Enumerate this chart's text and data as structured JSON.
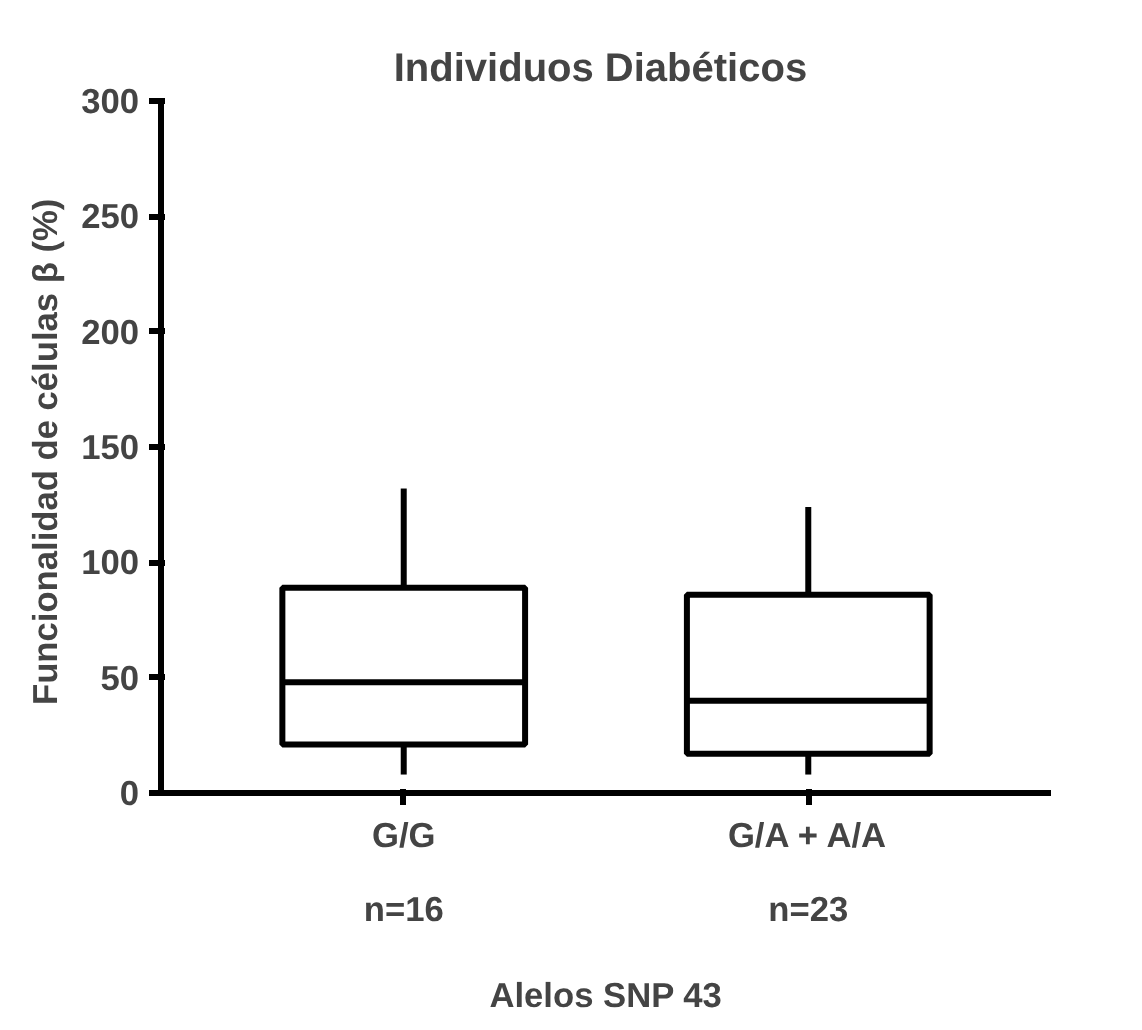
{
  "chart_data": {
    "type": "box",
    "title": "Individuos  Diabéticos",
    "xlabel": "Alelos SNP 43",
    "ylabel": "Funcionalidad de células β  (%)",
    "categories": [
      "G/G",
      "G/A + A/A"
    ],
    "boxes": [
      {
        "low": 8,
        "q1": 21,
        "median": 48,
        "q3": 89,
        "high": 132
      },
      {
        "low": 8,
        "q1": 17,
        "median": 40,
        "q3": 86,
        "high": 124
      }
    ],
    "ylim": [
      0,
      300
    ],
    "yticks": [
      0,
      50,
      100,
      150,
      200,
      250,
      300
    ],
    "grid": false,
    "annotations": [
      "n=16",
      "n=23"
    ]
  }
}
